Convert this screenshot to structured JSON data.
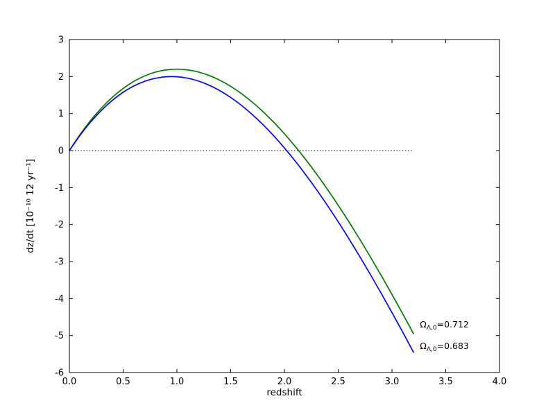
{
  "figure": {
    "background": "#ffffff",
    "frame_color": "#000000"
  },
  "chart_data": {
    "type": "line",
    "title": "",
    "xlabel": "redshift",
    "ylabel": "dz/dt [10^-10 12 yr^-1]",
    "ylabel_display": "dz/dt [10⁻¹⁰ 12 yr⁻¹]",
    "xlim": [
      0.0,
      4.0
    ],
    "ylim": [
      -6,
      3
    ],
    "grid": false,
    "legend_position": "inline-annotations-lower-right",
    "xticks": [
      0.0,
      0.5,
      1.0,
      1.5,
      2.0,
      2.5,
      3.0,
      3.5,
      4.0
    ],
    "xtick_labels": [
      "0.0",
      "0.5",
      "1.0",
      "1.5",
      "2.0",
      "2.5",
      "3.0",
      "3.5",
      "4.0"
    ],
    "yticks": [
      -6,
      -5,
      -4,
      -3,
      -2,
      -1,
      0,
      1,
      2,
      3
    ],
    "ytick_labels": [
      "-6",
      "-5",
      "-4",
      "-3",
      "-2",
      "-1",
      "0",
      "1",
      "2",
      "3"
    ],
    "zero_line": {
      "y": 0,
      "x_start": 0.0,
      "x_end": 3.2,
      "style": "dotted",
      "color": "#000000"
    },
    "x": [
      0.0,
      0.1,
      0.2,
      0.3,
      0.4,
      0.5,
      0.6,
      0.7,
      0.8,
      0.9,
      1.0,
      1.1,
      1.2,
      1.3,
      1.4,
      1.5,
      1.6,
      1.7,
      1.8,
      1.9,
      2.0,
      2.1,
      2.2,
      2.3,
      2.4,
      2.5,
      2.6,
      2.7,
      2.8,
      2.9,
      3.0,
      3.1,
      3.2
    ],
    "series": [
      {
        "name": "Omega_Lambda,0 = 0.712",
        "color": "#007a00",
        "peak": {
          "x": 1.0,
          "y": 2.2
        },
        "zero_crossing": 2.13,
        "values": [
          0.0,
          0.436,
          0.821,
          1.155,
          1.441,
          1.678,
          1.87,
          2.016,
          2.119,
          2.18,
          2.2,
          2.18,
          2.123,
          2.028,
          1.899,
          1.735,
          1.538,
          1.31,
          1.052,
          0.766,
          0.452,
          0.112,
          -0.252,
          -0.64,
          -1.05,
          -1.479,
          -1.929,
          -2.395,
          -2.879,
          -3.377,
          -3.889,
          -4.414,
          -4.949
        ]
      },
      {
        "name": "Omega_Lambda,0 = 0.683",
        "color": "#0000ff",
        "peak": {
          "x": 0.95,
          "y": 2.0
        },
        "zero_crossing": 2.02,
        "values": [
          0.0,
          0.416,
          0.78,
          1.093,
          1.358,
          1.575,
          1.746,
          1.872,
          1.954,
          1.995,
          1.995,
          1.956,
          1.879,
          1.766,
          1.617,
          1.435,
          1.221,
          0.976,
          0.702,
          0.399,
          0.07,
          -0.284,
          -0.663,
          -1.063,
          -1.485,
          -1.926,
          -2.386,
          -2.862,
          -3.354,
          -3.86,
          -4.379,
          -4.909,
          -5.45
        ]
      }
    ],
    "annotations": [
      {
        "pre": "Ω",
        "sub": "Λ,0",
        "post": "=0.712",
        "x": 3.26,
        "y": -4.78
      },
      {
        "pre": "Ω",
        "sub": "Λ,0",
        "post": "=0.683",
        "x": 3.26,
        "y": -5.36
      }
    ]
  }
}
